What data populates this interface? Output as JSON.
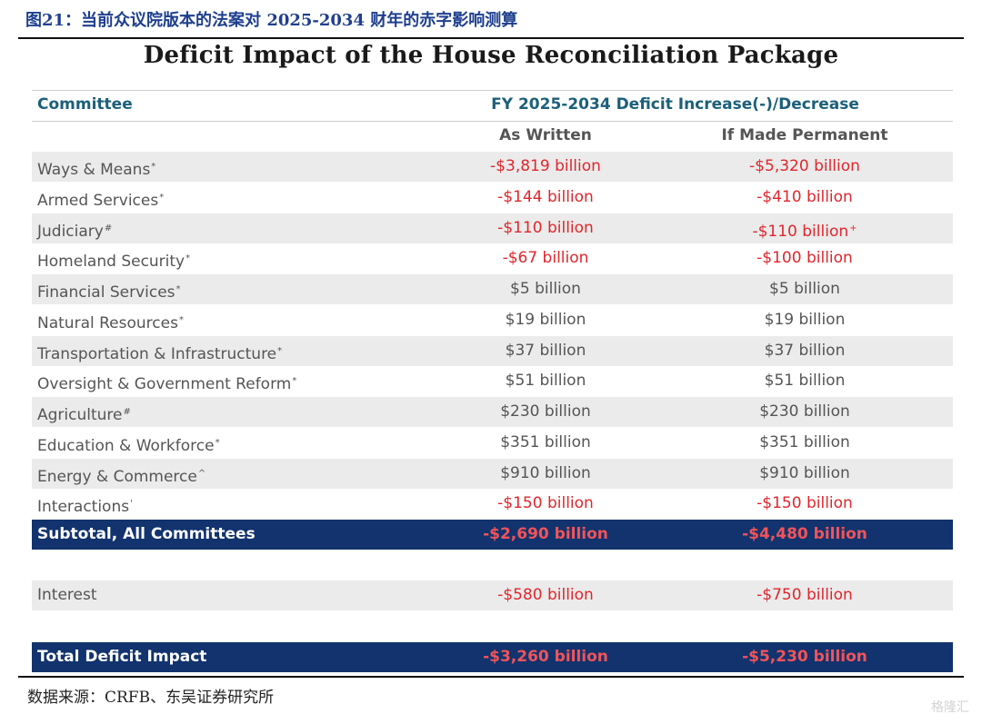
{
  "figure_title": "图21：当前众议院版本的法案对 2025-2034 财年的赤字影响测算",
  "table_title": "Deficit Impact of the House Reconciliation Package",
  "header": {
    "committee": "Committee",
    "fy_label": "FY 2025-2034 Deficit Increase(-)/Decrease",
    "col_written": "As Written",
    "col_permanent": "If Made Permanent"
  },
  "rows": [
    {
      "name": "Ways & Means",
      "mark": "*",
      "written": "-$3,819 billion",
      "permanent": "-$5,320 billion",
      "perm_mark": ""
    },
    {
      "name": "Armed Services",
      "mark": "*",
      "written": "-$144 billion",
      "permanent": "-$410 billion",
      "perm_mark": ""
    },
    {
      "name": "Judiciary",
      "mark": "#",
      "written": "-$110 billion",
      "permanent": "-$110 billion",
      "perm_mark": "+"
    },
    {
      "name": "Homeland Security",
      "mark": "*",
      "written": "-$67 billion",
      "permanent": "-$100 billion",
      "perm_mark": ""
    },
    {
      "name": "Financial Services",
      "mark": "*",
      "written": "$5 billion",
      "permanent": "$5 billion",
      "perm_mark": ""
    },
    {
      "name": "Natural Resources",
      "mark": "*",
      "written": "$19 billion",
      "permanent": "$19 billion",
      "perm_mark": ""
    },
    {
      "name": "Transportation & Infrastructure",
      "mark": "*",
      "written": "$37 billion",
      "permanent": "$37 billion",
      "perm_mark": ""
    },
    {
      "name": "Oversight & Government Reform",
      "mark": "*",
      "written": "$51 billion",
      "permanent": "$51 billion",
      "perm_mark": ""
    },
    {
      "name": "Agriculture",
      "mark": "#",
      "written": "$230 billion",
      "permanent": "$230 billion",
      "perm_mark": ""
    },
    {
      "name": "Education & Workforce",
      "mark": "*",
      "written": "$351 billion",
      "permanent": "$351 billion",
      "perm_mark": ""
    },
    {
      "name": "Energy & Commerce",
      "mark": "^",
      "written": "$910 billion",
      "permanent": "$910 billion",
      "perm_mark": ""
    },
    {
      "name": "Interactions",
      "mark": "'",
      "written": "-$150 billion",
      "permanent": "-$150 billion",
      "perm_mark": ""
    }
  ],
  "subtotal": {
    "name": "Subtotal, All Committees",
    "written": "-$2,690 billion",
    "permanent": "-$4,480 billion"
  },
  "interest": {
    "name": "Interest",
    "written": "-$580 billion",
    "permanent": "-$750 billion"
  },
  "total": {
    "name": "Total Deficit Impact",
    "written": "-$3,260 billion",
    "permanent": "-$5,230 billion"
  },
  "source": "数据来源：CRFB、东吴证券研究所",
  "watermark": "格隆汇",
  "colors": {
    "navy": "#12336e",
    "red": "#e0262c",
    "header_teal": "#1c5f7a",
    "shade": "#ebebeb"
  }
}
